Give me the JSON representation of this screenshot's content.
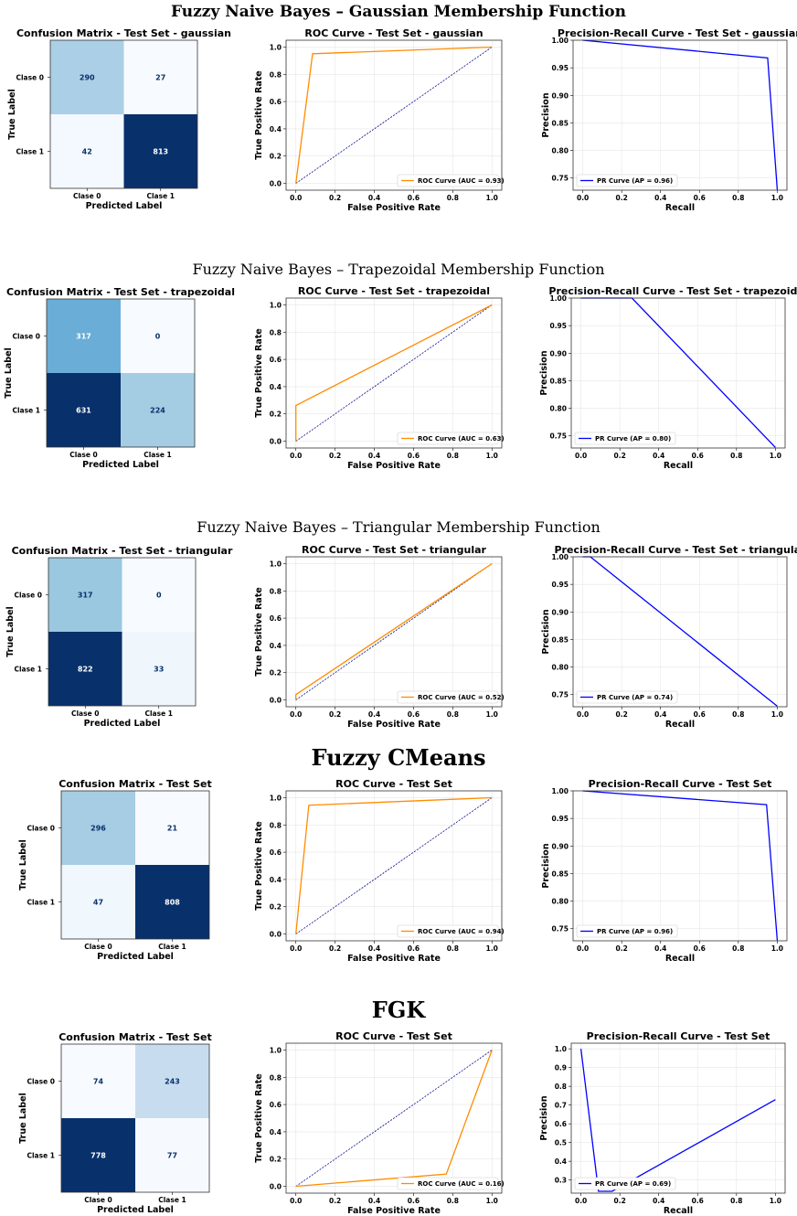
{
  "chart_data": [
    {
      "section_title": "Fuzzy Naive Bayes – Gaussian Membership Function",
      "confusion": {
        "type": "heatmap",
        "title": "Confusion Matrix - Test Set - gaussian",
        "xlabel": "Predicted Label",
        "ylabel": "True Label",
        "classes": [
          "Clase 0",
          "Clase 1"
        ],
        "matrix": [
          [
            290,
            27
          ],
          [
            42,
            813
          ]
        ]
      },
      "roc": {
        "type": "line",
        "title": "ROC Curve - Test Set - gaussian",
        "xlabel": "False Positive Rate",
        "ylabel": "True Positive Rate",
        "xlim": [
          0,
          1
        ],
        "ylim": [
          0,
          1
        ],
        "xticks": [
          "0.0",
          "0.2",
          "0.4",
          "0.6",
          "0.8",
          "1.0"
        ],
        "yticks": [
          "0.0",
          "0.2",
          "0.4",
          "0.6",
          "0.8",
          "1.0"
        ],
        "series": [
          {
            "name": "ROC Curve (AUC = 0.93)",
            "x": [
              0,
              0.085,
              1
            ],
            "y": [
              0,
              0.951,
              1
            ]
          }
        ],
        "diagonal": true,
        "legend": "lower-right"
      },
      "pr": {
        "type": "line",
        "title": "Precision-Recall Curve - Test Set - gaussian",
        "xlabel": "Recall",
        "ylabel": "Precision",
        "xlim": [
          0,
          1
        ],
        "ylim": [
          0.728,
          1.0
        ],
        "xticks": [
          "0.0",
          "0.2",
          "0.4",
          "0.6",
          "0.8",
          "1.0"
        ],
        "yticks": [
          "0.75",
          "0.80",
          "0.85",
          "0.90",
          "0.95",
          "1.00"
        ],
        "series": [
          {
            "name": "PR Curve (AP = 0.96)",
            "x": [
              0,
              0.951,
              1
            ],
            "y": [
              1.0,
              0.968,
              0.729
            ]
          }
        ],
        "legend": "lower-left"
      }
    },
    {
      "section_title": "Fuzzy Naive Bayes – Trapezoidal Membership Function",
      "confusion": {
        "type": "heatmap",
        "title": "Confusion Matrix - Test Set - trapezoidal",
        "xlabel": "Predicted Label",
        "ylabel": "True Label",
        "classes": [
          "Clase 0",
          "Clase 1"
        ],
        "matrix": [
          [
            317,
            0
          ],
          [
            631,
            224
          ]
        ]
      },
      "roc": {
        "type": "line",
        "title": "ROC Curve - Test Set - trapezoidal",
        "xlabel": "False Positive Rate",
        "ylabel": "True Positive Rate",
        "xlim": [
          0,
          1
        ],
        "ylim": [
          0,
          1
        ],
        "xticks": [
          "0.0",
          "0.2",
          "0.4",
          "0.6",
          "0.8",
          "1.0"
        ],
        "yticks": [
          "0.0",
          "0.2",
          "0.4",
          "0.6",
          "0.8",
          "1.0"
        ],
        "series": [
          {
            "name": "ROC Curve (AUC = 0.63)",
            "x": [
              0,
              0,
              1
            ],
            "y": [
              0,
              0.262,
              1
            ]
          }
        ],
        "diagonal": true,
        "legend": "lower-right"
      },
      "pr": {
        "type": "line",
        "title": "Precision-Recall Curve - Test Set - trapezoidal",
        "xlabel": "Recall",
        "ylabel": "Precision",
        "xlim": [
          0,
          1
        ],
        "ylim": [
          0.728,
          1.0
        ],
        "xticks": [
          "0.0",
          "0.2",
          "0.4",
          "0.6",
          "0.8",
          "1.0"
        ],
        "yticks": [
          "0.75",
          "0.80",
          "0.85",
          "0.90",
          "0.95",
          "1.00"
        ],
        "series": [
          {
            "name": "PR Curve (AP = 0.80)",
            "x": [
              0,
              0.262,
              1
            ],
            "y": [
              1.0,
              1.0,
              0.729
            ]
          }
        ],
        "legend": "lower-left"
      }
    },
    {
      "section_title": "Fuzzy Naive Bayes – Triangular Membership Function",
      "confusion": {
        "type": "heatmap",
        "title": "Confusion Matrix - Test Set - triangular",
        "xlabel": "Predicted Label",
        "ylabel": "True Label",
        "classes": [
          "Clase 0",
          "Clase 1"
        ],
        "matrix": [
          [
            317,
            0
          ],
          [
            822,
            33
          ]
        ]
      },
      "roc": {
        "type": "line",
        "title": "ROC Curve - Test Set - triangular",
        "xlabel": "False Positive Rate",
        "ylabel": "True Positive Rate",
        "xlim": [
          0,
          1
        ],
        "ylim": [
          0,
          1
        ],
        "xticks": [
          "0.0",
          "0.2",
          "0.4",
          "0.6",
          "0.8",
          "1.0"
        ],
        "yticks": [
          "0.0",
          "0.2",
          "0.4",
          "0.6",
          "0.8",
          "1.0"
        ],
        "series": [
          {
            "name": "ROC Curve (AUC = 0.52)",
            "x": [
              0,
              0,
              1
            ],
            "y": [
              0,
              0.039,
              1
            ]
          }
        ],
        "diagonal": true,
        "legend": "lower-right"
      },
      "pr": {
        "type": "line",
        "title": "Precision-Recall Curve - Test Set - triangular",
        "xlabel": "Recall",
        "ylabel": "Precision",
        "xlim": [
          0,
          1
        ],
        "ylim": [
          0.728,
          1.0
        ],
        "xticks": [
          "0.0",
          "0.2",
          "0.4",
          "0.6",
          "0.8",
          "1.0"
        ],
        "yticks": [
          "0.75",
          "0.80",
          "0.85",
          "0.90",
          "0.95",
          "1.00"
        ],
        "series": [
          {
            "name": "PR Curve (AP = 0.74)",
            "x": [
              0,
              0.039,
              1
            ],
            "y": [
              1.0,
              1.0,
              0.729
            ]
          }
        ],
        "legend": "lower-left"
      }
    },
    {
      "section_title": "Fuzzy CMeans",
      "confusion": {
        "type": "heatmap",
        "title": "Confusion Matrix - Test Set",
        "xlabel": "Predicted Label",
        "ylabel": "True Label",
        "classes": [
          "Clase 0",
          "Clase 1"
        ],
        "matrix": [
          [
            296,
            21
          ],
          [
            47,
            808
          ]
        ]
      },
      "roc": {
        "type": "line",
        "title": "ROC Curve - Test Set",
        "xlabel": "False Positive Rate",
        "ylabel": "True Positive Rate",
        "xlim": [
          0,
          1
        ],
        "ylim": [
          0,
          1
        ],
        "xticks": [
          "0.0",
          "0.2",
          "0.4",
          "0.6",
          "0.8",
          "1.0"
        ],
        "yticks": [
          "0.0",
          "0.2",
          "0.4",
          "0.6",
          "0.8",
          "1.0"
        ],
        "series": [
          {
            "name": "ROC Curve (AUC = 0.94)",
            "x": [
              0,
              0.066,
              1
            ],
            "y": [
              0,
              0.945,
              1
            ]
          }
        ],
        "diagonal": true,
        "legend": "lower-right"
      },
      "pr": {
        "type": "line",
        "title": "Precision-Recall Curve - Test Set",
        "xlabel": "Recall",
        "ylabel": "Precision",
        "xlim": [
          0,
          1
        ],
        "ylim": [
          0.728,
          1.0
        ],
        "xticks": [
          "0.0",
          "0.2",
          "0.4",
          "0.6",
          "0.8",
          "1.0"
        ],
        "yticks": [
          "0.75",
          "0.80",
          "0.85",
          "0.90",
          "0.95",
          "1.00"
        ],
        "series": [
          {
            "name": "PR Curve (AP = 0.96)",
            "x": [
              0,
              0.945,
              1
            ],
            "y": [
              1.0,
              0.975,
              0.729
            ]
          }
        ],
        "legend": "lower-left"
      }
    },
    {
      "section_title": "FGK",
      "confusion": {
        "type": "heatmap",
        "title": "Confusion Matrix - Test Set",
        "xlabel": "Predicted Label",
        "ylabel": "True Label",
        "classes": [
          "Clase 0",
          "Clase 1"
        ],
        "matrix": [
          [
            74,
            243
          ],
          [
            778,
            77
          ]
        ]
      },
      "roc": {
        "type": "line",
        "title": "ROC Curve - Test Set",
        "xlabel": "False Positive Rate",
        "ylabel": "True Positive Rate",
        "xlim": [
          0,
          1
        ],
        "ylim": [
          0,
          1
        ],
        "xticks": [
          "0.0",
          "0.2",
          "0.4",
          "0.6",
          "0.8",
          "1.0"
        ],
        "yticks": [
          "0.0",
          "0.2",
          "0.4",
          "0.6",
          "0.8",
          "1.0"
        ],
        "series": [
          {
            "name": "ROC Curve (AUC = 0.16)",
            "x": [
              0,
              0.767,
              1
            ],
            "y": [
              0,
              0.09,
              1
            ]
          }
        ],
        "diagonal": true,
        "legend": "lower-right"
      },
      "pr": {
        "type": "line",
        "title": "Precision-Recall Curve - Test Set",
        "xlabel": "Recall",
        "ylabel": "Precision",
        "xlim": [
          0,
          1
        ],
        "ylim": [
          0.23,
          1.03
        ],
        "xticks": [
          "0.0",
          "0.2",
          "0.4",
          "0.6",
          "0.8",
          "1.0"
        ],
        "yticks": [
          "0.3",
          "0.4",
          "0.5",
          "0.6",
          "0.7",
          "0.8",
          "0.9",
          "1.0"
        ],
        "series": [
          {
            "name": "PR Curve (AP = 0.69)",
            "x": [
              0,
              0.09,
              0.16,
              1
            ],
            "y": [
              1.0,
              0.24,
              0.24,
              0.729
            ]
          }
        ],
        "legend": "lower-left"
      }
    }
  ],
  "colors": {
    "roc": "#ff8c00",
    "pr": "#0000ff",
    "diagonal": "#00008b",
    "cmap_low": "#f7fbff",
    "cmap_high": "#08306b",
    "grid": "#e6e6e6"
  }
}
